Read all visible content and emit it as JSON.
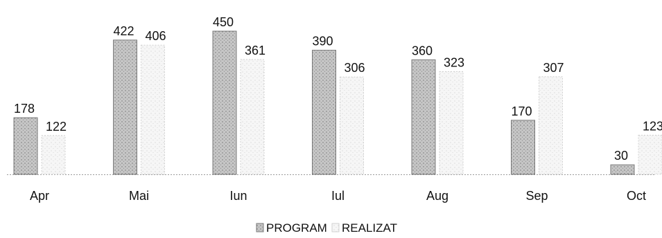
{
  "chart_data": {
    "type": "bar",
    "title": "",
    "xlabel": "",
    "ylabel": "",
    "categories": [
      "Apr",
      "Mai",
      "Iun",
      "Iul",
      "Aug",
      "Sep",
      "Oct"
    ],
    "series": [
      {
        "name": "PROGRAM",
        "values": [
          178,
          422,
          450,
          390,
          360,
          170,
          30
        ]
      },
      {
        "name": "REALIZAT",
        "values": [
          122,
          406,
          361,
          306,
          323,
          307,
          123
        ]
      }
    ],
    "ylim": [
      0,
      450
    ],
    "grid": false,
    "legend_position": "bottom",
    "colors": {
      "program": "#bdbdbd",
      "realizat": "#f2f2f2",
      "text": "#111111",
      "baseline": "#9a9a9a"
    }
  }
}
